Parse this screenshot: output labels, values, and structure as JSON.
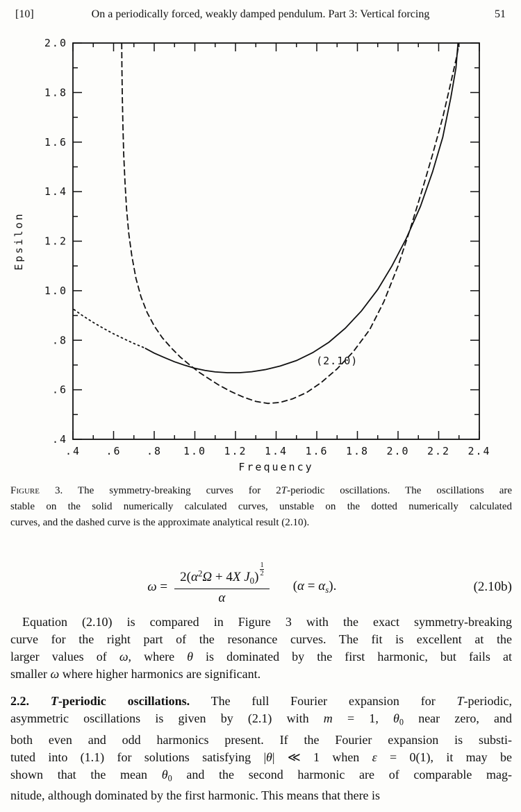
{
  "header": {
    "ref": "[10]",
    "title": "On a periodically forced, weakly damped pendulum. Part 3: Vertical forcing",
    "page_number": "51"
  },
  "chart_data": {
    "type": "line",
    "title": "",
    "xlabel": "Frequency",
    "ylabel": "Epsilon",
    "xlim": [
      0.4,
      2.4
    ],
    "ylim": [
      0.4,
      2.0
    ],
    "grid": false,
    "legend": "none",
    "x_ticks": {
      "minor_step": 0.1,
      "major": [
        {
          "v": 0.4,
          "label": ".4"
        },
        {
          "v": 0.6,
          "label": ".6"
        },
        {
          "v": 0.8,
          "label": ".8"
        },
        {
          "v": 1.0,
          "label": "1.0"
        },
        {
          "v": 1.2,
          "label": "1.2"
        },
        {
          "v": 1.4,
          "label": "1.4"
        },
        {
          "v": 1.6,
          "label": "1.6"
        },
        {
          "v": 1.8,
          "label": "1.8"
        },
        {
          "v": 2.0,
          "label": "2.0"
        },
        {
          "v": 2.2,
          "label": "2.2"
        },
        {
          "v": 2.4,
          "label": "2.4"
        }
      ]
    },
    "y_ticks": {
      "minor_step": 0.1,
      "major": [
        {
          "v": 0.4,
          "label": ".4"
        },
        {
          "v": 0.6,
          "label": ".6"
        },
        {
          "v": 0.8,
          "label": ".8"
        },
        {
          "v": 1.0,
          "label": "1.0"
        },
        {
          "v": 1.2,
          "label": "1.2"
        },
        {
          "v": 1.4,
          "label": "1.4"
        },
        {
          "v": 1.6,
          "label": "1.6"
        },
        {
          "v": 1.8,
          "label": "1.8"
        },
        {
          "v": 2.0,
          "label": "2.0"
        }
      ]
    },
    "annotation": {
      "text": "(2.10)",
      "x": 1.597,
      "y": 0.703
    },
    "series": [
      {
        "name": "stable-numerical-solid",
        "style": "solid",
        "points": [
          [
            0.755,
            0.768
          ],
          [
            0.8,
            0.748
          ],
          [
            0.85,
            0.73
          ],
          [
            0.9,
            0.713
          ],
          [
            0.95,
            0.699
          ],
          [
            1.0,
            0.687
          ],
          [
            1.05,
            0.678
          ],
          [
            1.1,
            0.672
          ],
          [
            1.16,
            0.669
          ],
          [
            1.22,
            0.669
          ],
          [
            1.28,
            0.673
          ],
          [
            1.35,
            0.682
          ],
          [
            1.42,
            0.696
          ],
          [
            1.5,
            0.718
          ],
          [
            1.58,
            0.75
          ],
          [
            1.66,
            0.792
          ],
          [
            1.74,
            0.848
          ],
          [
            1.82,
            0.918
          ],
          [
            1.9,
            1.005
          ],
          [
            1.97,
            1.1
          ],
          [
            2.04,
            1.21
          ],
          [
            2.11,
            1.34
          ],
          [
            2.17,
            1.48
          ],
          [
            2.22,
            1.62
          ],
          [
            2.26,
            1.78
          ],
          [
            2.285,
            1.9
          ],
          [
            2.295,
            2.0
          ]
        ]
      },
      {
        "name": "unstable-numerical-dotted",
        "style": "dotted",
        "points": [
          [
            0.405,
            0.924
          ],
          [
            0.45,
            0.898
          ],
          [
            0.5,
            0.872
          ],
          [
            0.55,
            0.848
          ],
          [
            0.6,
            0.826
          ],
          [
            0.65,
            0.806
          ],
          [
            0.7,
            0.787
          ],
          [
            0.75,
            0.77
          ]
        ]
      },
      {
        "name": "analytical-result-2.10-dashed",
        "style": "dashed",
        "points": [
          [
            0.64,
            2.0
          ],
          [
            0.641,
            1.9
          ],
          [
            0.643,
            1.78
          ],
          [
            0.646,
            1.66
          ],
          [
            0.65,
            1.55
          ],
          [
            0.656,
            1.44
          ],
          [
            0.664,
            1.33
          ],
          [
            0.675,
            1.23
          ],
          [
            0.69,
            1.14
          ],
          [
            0.71,
            1.05
          ],
          [
            0.735,
            0.975
          ],
          [
            0.765,
            0.912
          ],
          [
            0.8,
            0.858
          ],
          [
            0.84,
            0.81
          ],
          [
            0.885,
            0.768
          ],
          [
            0.93,
            0.731
          ],
          [
            0.975,
            0.7
          ],
          [
            1.02,
            0.671
          ],
          [
            1.07,
            0.644
          ],
          [
            1.12,
            0.618
          ],
          [
            1.18,
            0.592
          ],
          [
            1.24,
            0.57
          ],
          [
            1.3,
            0.553
          ],
          [
            1.36,
            0.545
          ],
          [
            1.42,
            0.549
          ],
          [
            1.48,
            0.563
          ],
          [
            1.55,
            0.589
          ],
          [
            1.62,
            0.628
          ],
          [
            1.7,
            0.684
          ],
          [
            1.78,
            0.754
          ],
          [
            1.86,
            0.842
          ],
          [
            1.93,
            0.955
          ],
          [
            2.0,
            1.1
          ],
          [
            2.06,
            1.25
          ],
          [
            2.12,
            1.41
          ],
          [
            2.17,
            1.55
          ],
          [
            2.22,
            1.7
          ],
          [
            2.26,
            1.84
          ],
          [
            2.29,
            1.95
          ],
          [
            2.3,
            2.0
          ]
        ]
      }
    ]
  },
  "caption": {
    "lines": [
      [
        {
          "t": "Figure",
          "s": "sc"
        },
        {
          "t": " 3.  The symmetry-breaking curves for 2"
        },
        {
          "t": "T",
          "s": "i"
        },
        {
          "t": "-periodic oscillations.  The oscillations are"
        }
      ],
      [
        {
          "t": "stable on the solid numerically calculated curves, unstable on the dotted numerically calculated"
        }
      ],
      [
        {
          "t": "curves, and the dashed curve is the approximate analytical result (2.10)."
        }
      ]
    ]
  },
  "equation": {
    "lhs": [
      {
        "t": "ω",
        "s": "i"
      },
      {
        "t": " ="
      }
    ],
    "numerator": [
      {
        "t": "2("
      },
      {
        "t": "α",
        "s": "i"
      },
      {
        "t": "2",
        "s": "sup"
      },
      {
        "t": "Ω",
        "s": "i"
      },
      {
        "t": " + 4"
      },
      {
        "t": "X J",
        "s": "i"
      },
      {
        "t": "0",
        "s": "sub"
      },
      {
        "t": ")"
      }
    ],
    "exponent": {
      "num": "1",
      "den": "2"
    },
    "denominator": [
      {
        "t": "α",
        "s": "i"
      }
    ],
    "condition": [
      {
        "t": "("
      },
      {
        "t": "α",
        "s": "i"
      },
      {
        "t": " = "
      },
      {
        "t": "α",
        "s": "i"
      },
      {
        "t": "s",
        "s": "subi"
      },
      {
        "t": ")."
      }
    ],
    "tag": "(2.10b)"
  },
  "paragraphs": {
    "p1": {
      "lines": [
        [
          {
            "t": "Equation (2.10) is compared in Figure 3 with the exact symmetry-breaking"
          }
        ],
        [
          {
            "t": "curve for the right part of the resonance curves.  The fit is excellent at the"
          }
        ],
        [
          {
            "t": "larger values of "
          },
          {
            "t": "ω",
            "s": "i"
          },
          {
            "t": ", where "
          },
          {
            "t": "θ",
            "s": "i"
          },
          {
            "t": " is dominated by the first harmonic, but fails at"
          }
        ],
        [
          {
            "t": "smaller "
          },
          {
            "t": "ω",
            "s": "i"
          },
          {
            "t": " where higher harmonics are significant."
          }
        ]
      ]
    },
    "p2": {
      "lines": [
        [
          {
            "t": "2.2.",
            "s": "b"
          },
          {
            "t": "   "
          },
          {
            "t": "T",
            "s": "bi"
          },
          {
            "t": "-periodic oscillations.",
            "s": "b"
          },
          {
            "t": " The full Fourier expansion for "
          },
          {
            "t": "T",
            "s": "i"
          },
          {
            "t": "-periodic,"
          }
        ],
        [
          {
            "t": "asymmetric oscillations is given by (2.1) with "
          },
          {
            "t": "m",
            "s": "i"
          },
          {
            "t": " = 1, "
          },
          {
            "t": "θ",
            "s": "i"
          },
          {
            "t": "0",
            "s": "sub"
          },
          {
            "t": " near zero, and"
          }
        ],
        [
          {
            "t": "both even and odd harmonics present.  If the Fourier expansion is substi-"
          }
        ],
        [
          {
            "t": "tuted into (1.1) for solutions satisfying |"
          },
          {
            "t": "θ",
            "s": "i"
          },
          {
            "t": "| ≪ 1 when "
          },
          {
            "t": "ε",
            "s": "i"
          },
          {
            "t": " = 0(1), it may be"
          }
        ],
        [
          {
            "t": "shown that the mean "
          },
          {
            "t": "θ",
            "s": "i"
          },
          {
            "t": "0",
            "s": "sub"
          },
          {
            "t": " and the second harmonic are of comparable mag-"
          }
        ],
        [
          {
            "t": "nitude, although dominated by the first harmonic.  This means that there is"
          }
        ]
      ]
    }
  }
}
